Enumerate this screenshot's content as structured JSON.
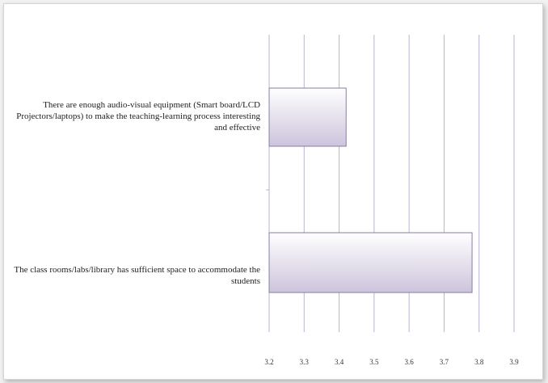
{
  "chart_data": {
    "type": "bar",
    "orientation": "horizontal",
    "categories": [
      "There are enough audio-visual equipment (Smart board/LCD Projectors/laptops)  to make the teaching-learning process interesting  and effective",
      "The class rooms/labs/library has sufficient space to accommodate the students"
    ],
    "values": [
      3.42,
      3.78
    ],
    "xlim": [
      3.2,
      3.9
    ],
    "ticks": [
      "3.2",
      "3.3",
      "3.4",
      "3.5",
      "3.6",
      "3.7",
      "3.8",
      "3.9"
    ],
    "grid": true,
    "colors": {
      "bar_light": "#ffffff",
      "bar_dark": "#cdc4dc",
      "bar_border": "#8a7ca6",
      "grid": "#b9b3d0"
    }
  }
}
